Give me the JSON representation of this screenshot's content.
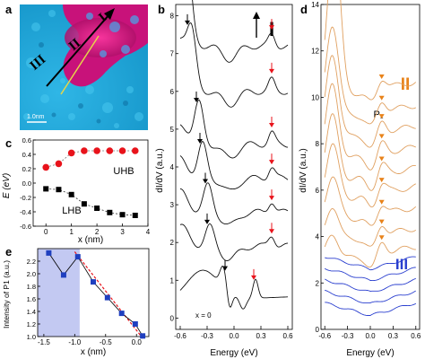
{
  "panels": {
    "a": {
      "letter": "a",
      "labels": {
        "I": "I",
        "II": "II",
        "III": "III"
      },
      "scalebar": "1.0nm",
      "colors": {
        "background": "#22a8d8",
        "island": "#c8127a",
        "island_core": "#e01a8c",
        "arrow": "#000000"
      }
    },
    "b": {
      "letter": "b",
      "region_label": "I",
      "ylabel": "dI/dV (a.u.)",
      "xlabel": "Energy (eV)",
      "xticks": [
        "-0.6",
        "-0.3",
        "0.0",
        "0.3",
        "0.6"
      ],
      "yticks": [
        "0",
        "1",
        "2",
        "3",
        "4",
        "5",
        "6",
        "7",
        "8"
      ],
      "annotation": "x = 0"
    },
    "c": {
      "letter": "c",
      "ylabel": "E (eV)",
      "xlabel": "x (nm)",
      "xticks": [
        "0",
        "1",
        "2",
        "3",
        "4"
      ],
      "yticks": [
        "0.6",
        "0.4",
        "0.2",
        "0.0",
        "-0.2",
        "-0.4",
        "-0.6"
      ],
      "uhb_label": "UHB",
      "lhb_label": "LHB"
    },
    "d": {
      "letter": "d",
      "ylabel": "dI/dV (a.u.)",
      "xlabel": "Energy (eV)",
      "xticks": [
        "-0.6",
        "-0.3",
        "0.0",
        "0.3",
        "0.6"
      ],
      "yticks": [
        "0",
        "2",
        "4",
        "6",
        "8",
        "10",
        "12",
        "14"
      ],
      "label_II": "II",
      "label_III": "III",
      "peak_label": "P₁"
    },
    "e": {
      "letter": "e",
      "ylabel": "Intensity of P1 (a.u.)",
      "xlabel": "x (nm)",
      "xticks": [
        "-1.5",
        "-1.0",
        "-0.5",
        "0.0"
      ],
      "yticks": [
        "2.2",
        "2.0",
        "1.8",
        "1.6",
        "1.4",
        "1.2",
        "1.0"
      ]
    }
  },
  "chart_data": [
    {
      "panel": "c",
      "type": "scatter",
      "xlabel": "x (nm)",
      "ylabel": "E (eV)",
      "xlim": [
        -0.5,
        4
      ],
      "ylim": [
        -0.6,
        0.6
      ],
      "series": [
        {
          "name": "UHB",
          "color": "#e8131b",
          "marker": "circle",
          "x": [
            0,
            0.5,
            1.0,
            1.5,
            2.0,
            2.5,
            3.0,
            3.5
          ],
          "y": [
            0.22,
            0.27,
            0.42,
            0.45,
            0.45,
            0.45,
            0.45,
            0.45
          ]
        },
        {
          "name": "LHB",
          "color": "#000000",
          "marker": "square",
          "x": [
            0,
            0.5,
            1.0,
            1.5,
            2.0,
            2.5,
            3.0,
            3.5
          ],
          "y": [
            -0.08,
            -0.09,
            -0.16,
            -0.29,
            -0.35,
            -0.41,
            -0.44,
            -0.45
          ]
        }
      ]
    },
    {
      "panel": "e",
      "type": "line",
      "xlabel": "x (nm)",
      "ylabel": "Intensity of P1 (a.u.)",
      "xlim": [
        -1.6,
        0.2
      ],
      "ylim": [
        1.0,
        2.4
      ],
      "shaded_x": [
        -1.6,
        -0.92
      ],
      "series": [
        {
          "color": "#1f3fbf",
          "marker": "square",
          "x": [
            -1.42,
            -1.18,
            -0.95,
            -0.7,
            -0.47,
            -0.24,
            -0.02,
            0.1
          ],
          "y": [
            2.33,
            1.98,
            2.27,
            1.87,
            1.62,
            1.37,
            1.2,
            1.01
          ]
        }
      ],
      "fit": {
        "color": "#e8131b",
        "x": [
          -1.0,
          0.12
        ],
        "y": [
          2.35,
          0.95
        ]
      }
    },
    {
      "panel": "b",
      "type": "line",
      "xlabel": "Energy (eV)",
      "ylabel": "dI/dV (a.u.)",
      "xlim": [
        -0.65,
        0.65
      ],
      "ylim": [
        -0.3,
        8.3
      ],
      "series": [
        {
          "offset": 0.5,
          "dip": -0.05,
          "peak": 0.22,
          "black_arrow": -0.1,
          "red_arrow": 0.22
        },
        {
          "offset": 1.9,
          "dip": -0.3,
          "peak": 0.42,
          "black_arrow": -0.3,
          "red_arrow": 0.42
        },
        {
          "offset": 2.8,
          "dip": -0.32,
          "peak": 0.42,
          "black_arrow": -0.32,
          "red_arrow": 0.42
        },
        {
          "offset": 3.7,
          "dip": -0.38,
          "peak": 0.42,
          "black_arrow": -0.38,
          "red_arrow": 0.42
        },
        {
          "offset": 4.6,
          "dip": -0.42,
          "peak": 0.42,
          "black_arrow": -0.42,
          "red_arrow": 0.42
        },
        {
          "offset": 6.0,
          "dip": -0.5,
          "peak": 0.42,
          "black_arrow": -0.52,
          "red_arrow": 0.42
        },
        {
          "offset": 7.2,
          "dip": -0.55,
          "peak": 0.42,
          "black_arrow": -0.55,
          "red_arrow": 0.42
        }
      ]
    },
    {
      "panel": "d",
      "type": "line",
      "xlabel": "Energy (eV)",
      "ylabel": "dI/dV (a.u.)",
      "xlim": [
        -0.65,
        0.65
      ],
      "ylim": [
        0,
        14
      ],
      "series_orange_offsets": [
        3.2,
        4.0,
        4.9,
        5.8,
        6.6,
        7.5,
        8.4,
        9.3,
        10.3
      ],
      "series_blue_offsets": [
        0.6,
        1.1,
        1.6,
        2.1,
        2.6
      ],
      "peak_energy": 0.15,
      "colors": {
        "orange": "#e0a060",
        "blue": "#2a3fcf",
        "arrow": "#e8831b"
      }
    }
  ]
}
